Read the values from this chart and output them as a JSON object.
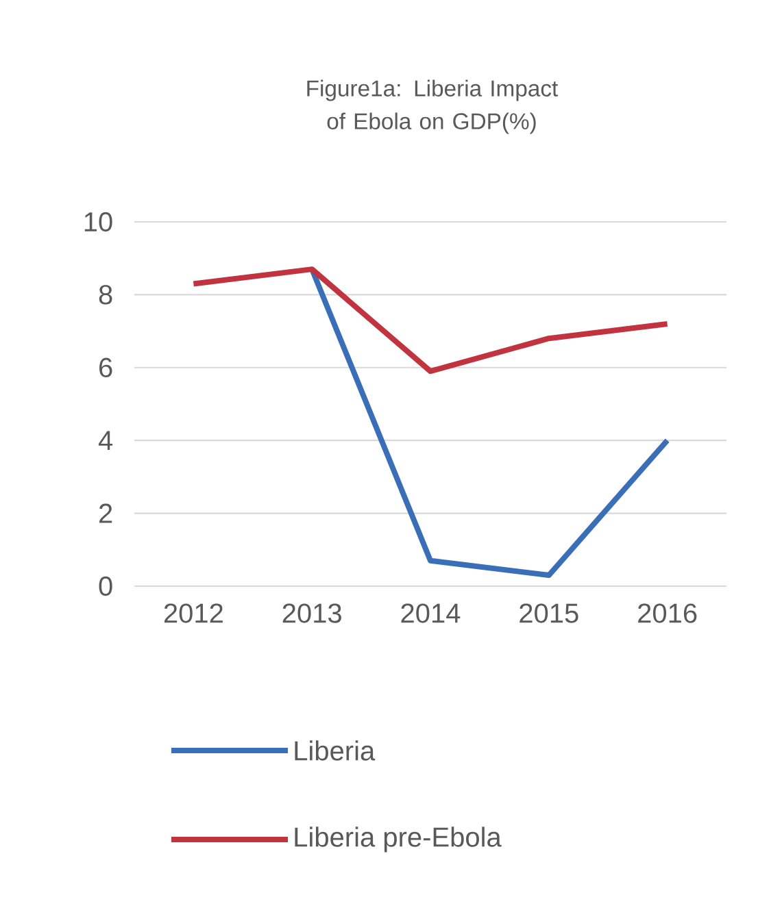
{
  "chart_data": {
    "type": "line",
    "title": "Figure1a: Liberia Impact of Ebola on GDP(%)",
    "categories": [
      "2012",
      "2013",
      "2014",
      "2015",
      "2016"
    ],
    "series": [
      {
        "name": "Liberia",
        "color": "#3a6fb8",
        "values": [
          null,
          8.7,
          0.7,
          0.3,
          4.0
        ]
      },
      {
        "name": "Liberia pre-Ebola",
        "color": "#c0333f",
        "values": [
          8.3,
          8.7,
          5.9,
          6.8,
          7.2
        ]
      }
    ],
    "ylim": [
      0,
      10
    ],
    "yticks": [
      0,
      2,
      4,
      6,
      8,
      10
    ],
    "grid": "y",
    "legend": "bottom",
    "marker": "none",
    "line_style": "solid"
  }
}
